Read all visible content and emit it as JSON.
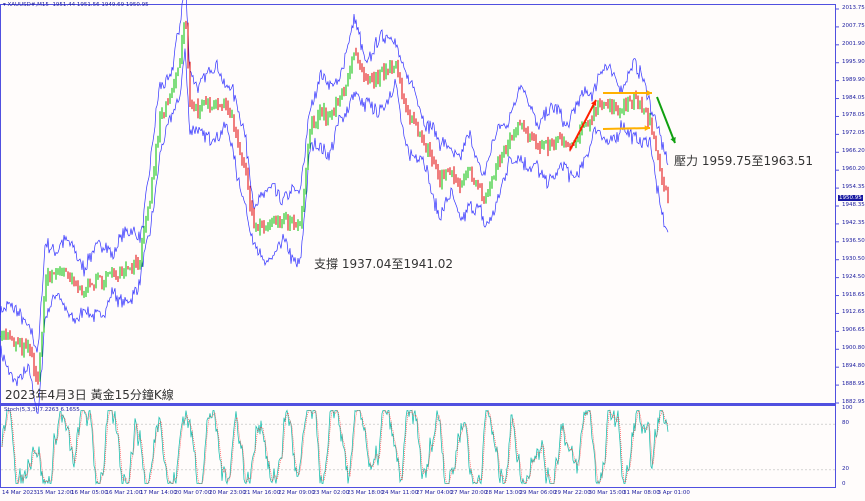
{
  "header": {
    "symbol": "XAUUSD#,M15",
    "ohlc": "1951.44 1951.56 1949.69 1950.95"
  },
  "current_price": "1950.95",
  "annotations": {
    "support": "支撐 1937.04至1941.02",
    "resistance": "壓力 1959.75至1963.51",
    "caption": "2023年4月3日 黃金15分鐘K線"
  },
  "price_axis": [
    "2013.75",
    "2007.75",
    "2001.90",
    "1995.90",
    "1989.90",
    "1984.05",
    "1978.05",
    "1972.05",
    "1966.20",
    "1960.20",
    "1954.35",
    "1948.35",
    "1942.35",
    "1936.50",
    "1930.50",
    "1924.50",
    "1918.65",
    "1912.65",
    "1906.65",
    "1900.80",
    "1894.80",
    "1888.95",
    "1882.95"
  ],
  "stoch": {
    "label": "Stoch(5,3,3) 7.2263 6.1655",
    "axis": [
      "100",
      "80",
      "20",
      "0"
    ]
  },
  "time_axis": [
    "14 Mar 2023",
    "15 Mar 12:00",
    "16 Mar 05:00",
    "16 Mar 21:00",
    "17 Mar 14:00",
    "20 Mar 07:00",
    "20 Mar 23:00",
    "21 Mar 16:00",
    "22 Mar 09:00",
    "23 Mar 02:00",
    "23 Mar 18:00",
    "24 Mar 11:00",
    "27 Mar 04:00",
    "27 Mar 20:00",
    "28 Mar 13:00",
    "29 Mar 06:00",
    "29 Mar 22:00",
    "30 Mar 15:00",
    "31 Mar 08:00",
    "3 Apr 01:00"
  ],
  "colors": {
    "axis": "#5050e0",
    "band": "#3030ff",
    "bull": "#00c000",
    "bear": "#e00000",
    "stoch_main": "#20c0b0",
    "stoch_signal": "#ff3030",
    "arrow_up": "#ff2000",
    "arrow_side": "#ffb000",
    "arrow_down": "#10a010"
  },
  "chart_data": {
    "type": "candlestick",
    "price_range": [
      1882.95,
      2013.75
    ],
    "approx_close_path": [
      [
        0,
        1907.2
      ],
      [
        40,
        1902.2
      ],
      [
        81,
        1900.5
      ],
      [
        103,
        1888.9
      ],
      [
        122,
        1923.8
      ],
      [
        162,
        1927.1
      ],
      [
        216,
        1920.4
      ],
      [
        270,
        1923.8
      ],
      [
        324,
        1927.1
      ],
      [
        378,
        1930.4
      ],
      [
        405,
        1950.3
      ],
      [
        432,
        1976.9
      ],
      [
        459,
        1983.5
      ],
      [
        486,
        1996.8
      ],
      [
        500,
        2011.8
      ],
      [
        513,
        1983.5
      ],
      [
        540,
        1980.2
      ],
      [
        581,
        1983.5
      ],
      [
        621,
        1980.2
      ],
      [
        662,
        1960.3
      ],
      [
        689,
        1940.4
      ],
      [
        729,
        1942.0
      ],
      [
        770,
        1943.7
      ],
      [
        810,
        1940.4
      ],
      [
        824,
        1957.0
      ],
      [
        837,
        1973.6
      ],
      [
        864,
        1980.2
      ],
      [
        891,
        1976.9
      ],
      [
        918,
        1983.5
      ],
      [
        959,
        1998.5
      ],
      [
        986,
        1988.5
      ],
      [
        1026,
        1991.8
      ],
      [
        1067,
        1996.8
      ],
      [
        1094,
        1980.2
      ],
      [
        1134,
        1973.6
      ],
      [
        1188,
        1957.0
      ],
      [
        1215,
        1960.3
      ],
      [
        1242,
        1953.6
      ],
      [
        1269,
        1960.3
      ],
      [
        1310,
        1950.3
      ],
      [
        1350,
        1963.6
      ],
      [
        1404,
        1976.9
      ],
      [
        1458,
        1966.9
      ],
      [
        1512,
        1970.3
      ],
      [
        1539,
        1966.9
      ],
      [
        1593,
        1976.9
      ],
      [
        1620,
        1983.5
      ],
      [
        1661,
        1980.2
      ],
      [
        1715,
        1983.5
      ],
      [
        1755,
        1976.9
      ],
      [
        1782,
        1960.3
      ],
      [
        1804,
        1950.95
      ]
    ]
  }
}
